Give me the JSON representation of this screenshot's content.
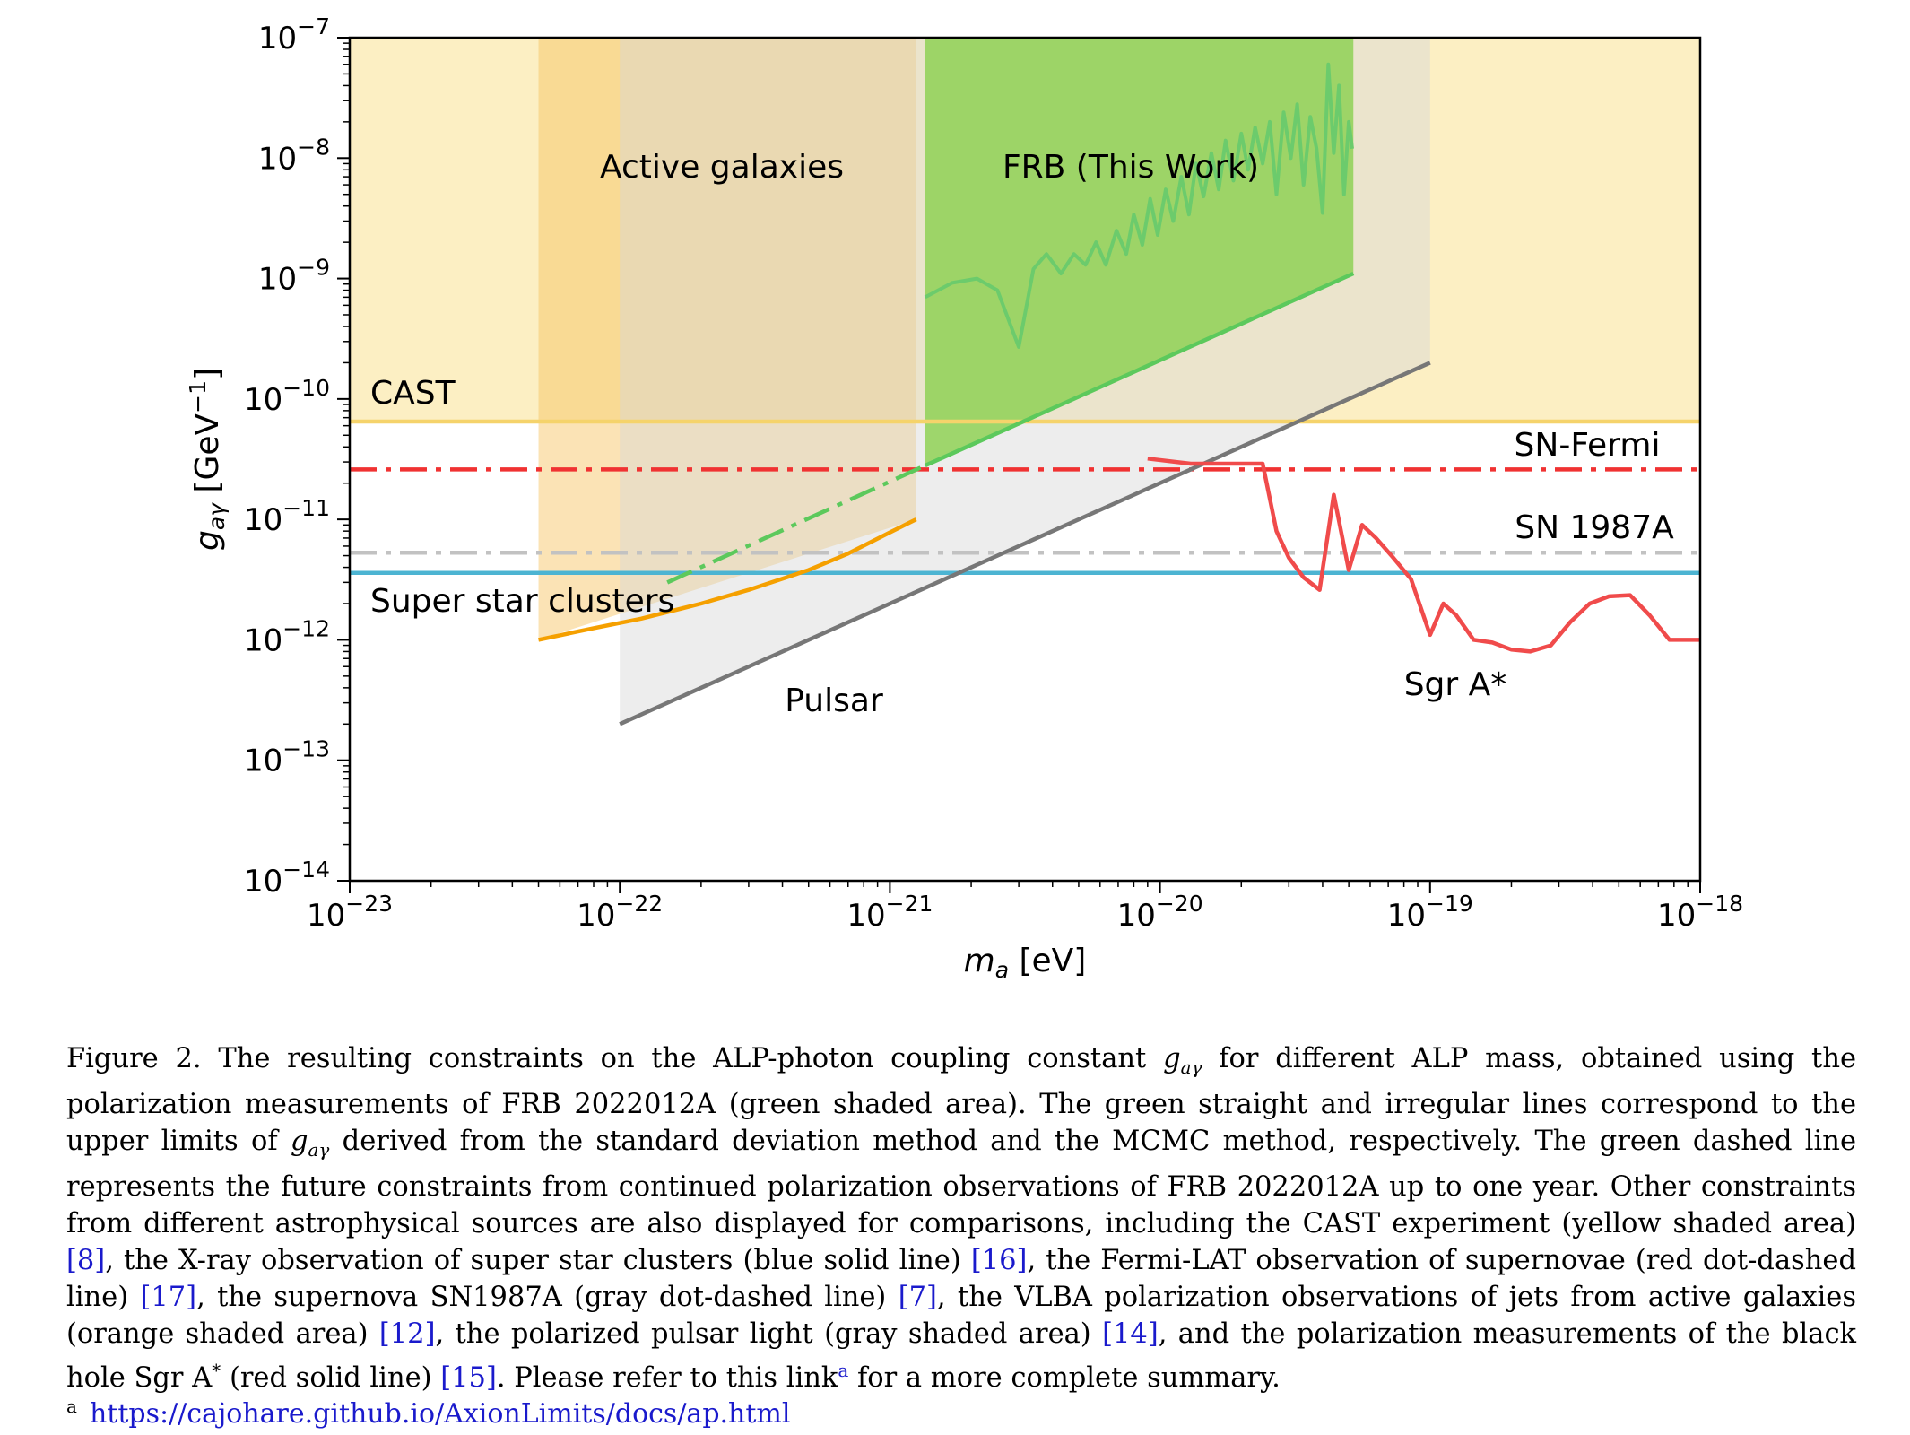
{
  "chart_data": {
    "type": "line",
    "x_scale": "log",
    "y_scale": "log",
    "xlim": [
      1e-23,
      1e-18
    ],
    "ylim": [
      1e-14,
      1e-07
    ],
    "xlabel": "m_a [eV]",
    "ylabel": "g_aγ [GeV^-1]",
    "x_ticks": [
      "10^-23",
      "10^-22",
      "10^-21",
      "10^-20",
      "10^-19",
      "10^-18"
    ],
    "y_ticks": [
      "10^-14",
      "10^-13",
      "10^-12",
      "10^-11",
      "10^-10",
      "10^-9",
      "10^-8",
      "10^-7"
    ],
    "grid": false,
    "regions": [
      {
        "name": "CAST",
        "color": "#fcefc3",
        "x": [
          1e-23,
          1e-18
        ],
        "y_min": 6.5e-11,
        "y_max": 1e-07
      },
      {
        "name": "Active galaxies",
        "color": "#f6c25a",
        "x_points": [
          5e-23,
          1.25e-21
        ],
        "y_lower": [
          1e-12,
          1e-11
        ],
        "y_max": 1e-07
      },
      {
        "name": "Pulsar",
        "color": "#d7d7d7",
        "x_points": [
          1e-22,
          1e-19
        ],
        "y_lower": [
          2e-13,
          2e-10
        ],
        "y_max": 1e-07
      },
      {
        "name": "FRB (This Work)",
        "color": "#8fd155",
        "x_points": [
          1.35e-21,
          5.2e-20
        ],
        "y_lower": [
          2.8e-11,
          1.1e-09
        ],
        "y_max": 1e-07
      }
    ],
    "region_labels": [
      "Active galaxies",
      "FRB (This Work)",
      "Pulsar",
      "CAST",
      "Super star clusters",
      "SN-Fermi",
      "SN 1987A",
      "Sgr A*"
    ],
    "series": [
      {
        "name": "CAST",
        "style": "solid",
        "color": "#f5d36b",
        "x": [
          1e-23,
          1e-18
        ],
        "y": [
          6.5e-11,
          6.5e-11
        ]
      },
      {
        "name": "SN-Fermi",
        "style": "dash-dot",
        "color": "#f03232",
        "x": [
          1e-23,
          1e-18
        ],
        "y": [
          2.6e-11,
          2.6e-11
        ]
      },
      {
        "name": "SN 1987A",
        "style": "dash-dot",
        "color": "#c2c2c2",
        "x": [
          1e-23,
          1e-18
        ],
        "y": [
          5.3e-12,
          5.3e-12
        ]
      },
      {
        "name": "Super star clusters",
        "style": "solid",
        "color": "#4cb4d2",
        "x": [
          1e-23,
          1e-18
        ],
        "y": [
          3.6e-12,
          3.6e-12
        ]
      },
      {
        "name": "Active galaxies",
        "style": "solid",
        "color": "#f5a000",
        "x": [
          5e-23,
          8e-23,
          1.2e-22,
          2e-22,
          3e-22,
          5e-22,
          7e-22,
          1e-21,
          1.25e-21
        ],
        "y": [
          1e-12,
          1.25e-12,
          1.5e-12,
          2e-12,
          2.6e-12,
          3.8e-12,
          5.2e-12,
          7.8e-12,
          1e-11
        ]
      },
      {
        "name": "Pulsar",
        "style": "solid",
        "color": "#777777",
        "x": [
          1e-22,
          1e-19
        ],
        "y": [
          2e-13,
          2e-10
        ]
      },
      {
        "name": "FRB std",
        "style": "solid",
        "color": "#5cc95c",
        "x": [
          1.35e-21,
          5.2e-20
        ],
        "y": [
          2.8e-11,
          1.1e-09
        ]
      },
      {
        "name": "FRB future",
        "style": "dash-dot",
        "color": "#5cc95c",
        "x": [
          1.5e-22,
          1.35e-21
        ],
        "y": [
          3e-12,
          2.8e-11
        ]
      },
      {
        "name": "FRB MCMC",
        "style": "solid",
        "color": "#6ccb6c",
        "x": [
          1.35e-21,
          1.7e-21,
          2.1e-21,
          2.5e-21,
          3e-21,
          3.4e-21,
          3.8e-21,
          4.3e-21,
          4.8e-21,
          5.3e-21,
          5.8e-21,
          6.3e-21,
          6.9e-21,
          7.5e-21,
          8e-21,
          8.6e-21,
          9.2e-21,
          9.8e-21,
          1.05e-20,
          1.12e-20,
          1.2e-20,
          1.28e-20,
          1.36e-20,
          1.45e-20,
          1.55e-20,
          1.65e-20,
          1.75e-20,
          1.87e-20,
          2e-20,
          2.12e-20,
          2.25e-20,
          2.4e-20,
          2.55e-20,
          2.7e-20,
          2.87e-20,
          3.05e-20,
          3.22e-20,
          3.4e-20,
          3.6e-20,
          3.8e-20,
          4e-20,
          4.2e-20,
          4.4e-20,
          4.6e-20,
          4.8e-20,
          5e-20,
          5.15e-20
        ],
        "y": [
          7e-10,
          9.2e-10,
          1e-09,
          8e-10,
          2.7e-10,
          1.2e-09,
          1.6e-09,
          1.1e-09,
          1.6e-09,
          1.3e-09,
          2e-09,
          1.3e-09,
          2.5e-09,
          1.6e-09,
          3.4e-09,
          1.9e-09,
          4.6e-09,
          2.3e-09,
          5.5e-09,
          3e-09,
          7e-09,
          3.4e-09,
          9e-09,
          4.8e-09,
          1.1e-08,
          5.5e-09,
          1.4e-08,
          6.5e-09,
          1.6e-08,
          8e-09,
          1.8e-08,
          9e-09,
          2e-08,
          5e-09,
          2.4e-08,
          1e-08,
          2.8e-08,
          6e-09,
          2.2e-08,
          1.2e-08,
          3.5e-09,
          6e-08,
          1.1e-08,
          4e-08,
          5e-09,
          2e-08,
          1.2e-08
        ]
      },
      {
        "name": "Sgr A*",
        "style": "solid",
        "color": "#f04b4b",
        "x": [
          9e-21,
          1.3e-20,
          1.8e-20,
          2.4e-20,
          2.7e-20,
          3e-20,
          3.4e-20,
          3.9e-20,
          4.4e-20,
          5e-20,
          5.6e-20,
          6.3e-20,
          7.2e-20,
          8.5e-20,
          1e-19,
          1.12e-19,
          1.25e-19,
          1.45e-19,
          1.7e-19,
          2e-19,
          2.35e-19,
          2.8e-19,
          3.3e-19,
          3.9e-19,
          4.6e-19,
          5.5e-19,
          6.5e-19,
          7.7e-19,
          8.8e-19,
          1e-18
        ],
        "y": [
          3.2e-11,
          2.9e-11,
          2.9e-11,
          2.9e-11,
          8e-12,
          4.8e-12,
          3.3e-12,
          2.6e-12,
          1.6e-11,
          3.8e-12,
          9e-12,
          7e-12,
          5e-12,
          3.2e-12,
          1.1e-12,
          2e-12,
          1.6e-12,
          1e-12,
          9.5e-13,
          8.3e-13,
          8e-13,
          9e-13,
          1.4e-12,
          2e-12,
          2.3e-12,
          2.35e-12,
          1.6e-12,
          1e-12,
          1e-12,
          1e-12
        ]
      }
    ]
  },
  "caption": {
    "label": "Figure 2.",
    "seg1": "The resulting constraints on the ALP-photon coupling constant",
    "var": "g",
    "sub": "aγ",
    "seg2": "for different ALP mass, obtained using the polarization measurements of FRB 2022012A (green shaded area). The green straight and irregular lines correspond to the upper limits of",
    "seg3": "derived from the standard deviation method and the MCMC method, respectively. The green dashed line represents the future constraints from continued polarization observations of FRB 2022012A up to one year. Other constraints from different astrophysical sources are also displayed for comparisons, including the CAST experiment (yellow shaded area)",
    "ref1": "[8]",
    "seg4": ", the X-ray observation of super star clusters (blue solid line)",
    "ref2": "[16]",
    "seg5": ", the Fermi-LAT observation of supernovae (red dot-dashed line)",
    "ref3": "[17]",
    "seg6": ", the supernova SN1987A (gray dot-dashed line)",
    "ref4": "[7]",
    "seg7": ", the VLBA polarization observations of jets from active galaxies (orange shaded area)",
    "ref5": "[12]",
    "seg8": ", the polarized pulsar light (gray shaded area)",
    "ref6": "[14]",
    "seg9": ", and the polarization measurements of the black hole Sgr A",
    "star": "*",
    "seg10": "(red solid line)",
    "ref7": "[15]",
    "seg11": ". Please refer to this link",
    "link_mark": "a",
    "seg12": "for a more complete summary."
  },
  "footnote": {
    "mark": "a",
    "url": "https://cajohare.github.io/AxionLimits/docs/ap.html"
  }
}
